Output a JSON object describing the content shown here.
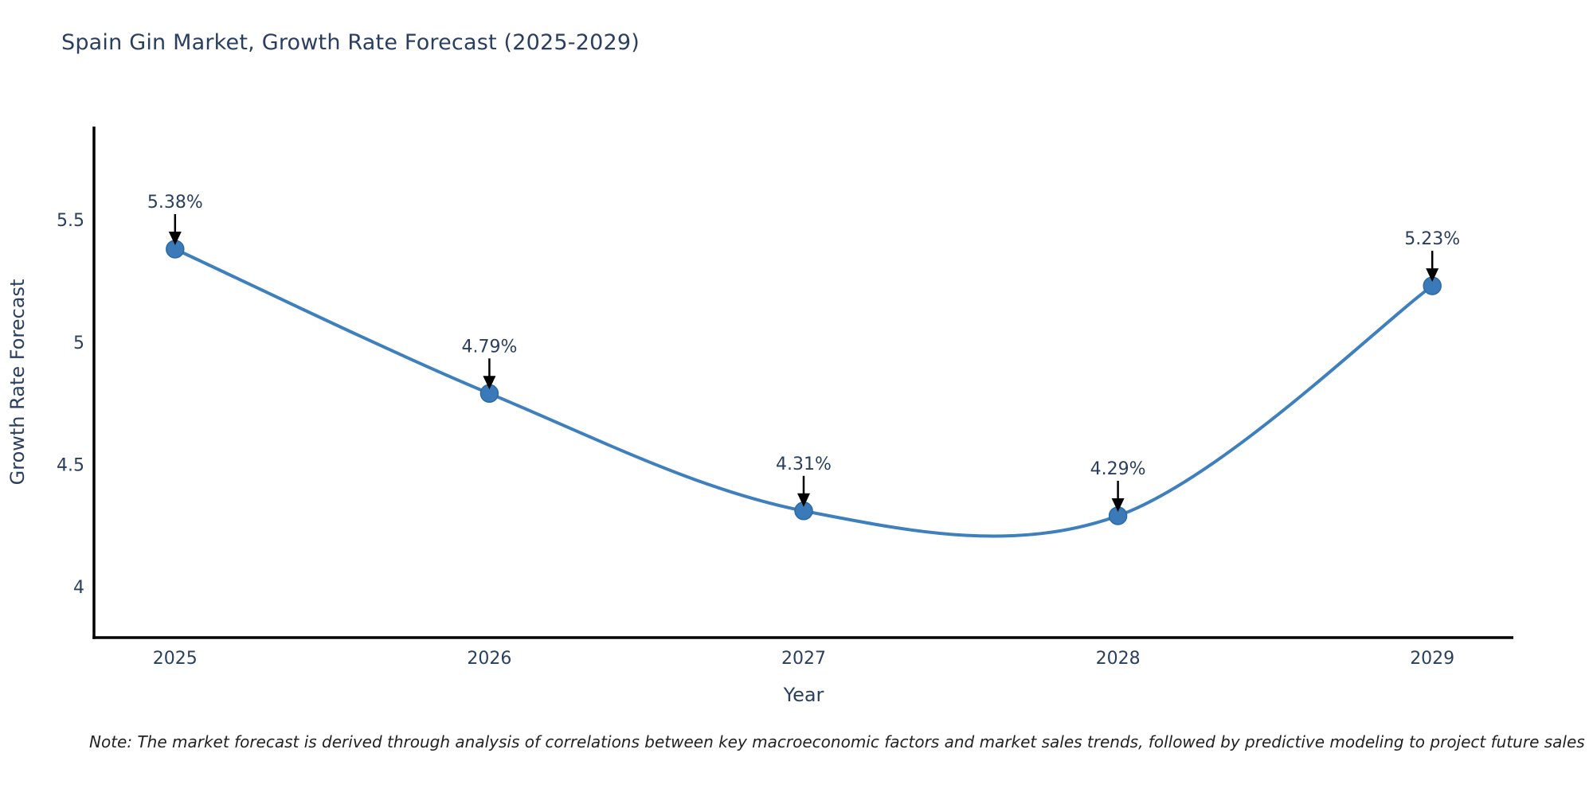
{
  "title": "Spain Gin Market, Growth Rate Forecast (2025-2029)",
  "note": "Note: The market forecast is derived through analysis of correlations between key macroeconomic factors and market sales trends, followed by predictive modeling to project future sales",
  "chart_data": {
    "type": "line",
    "title": "Spain Gin Market, Growth Rate Forecast (2025-2029)",
    "x": [
      2025,
      2026,
      2027,
      2028,
      2029
    ],
    "values": [
      5.38,
      4.79,
      4.31,
      4.29,
      5.23
    ],
    "point_labels": [
      "5.38%",
      "4.79%",
      "4.31%",
      "4.29%",
      "5.23%"
    ],
    "xlabel": "Year",
    "ylabel": "Growth Rate Forecast",
    "xlim": [
      2024.742,
      2029.258
    ],
    "ylim": [
      3.792,
      5.881
    ],
    "xticks": [
      2025,
      2026,
      2027,
      2028,
      2029
    ],
    "xtick_labels": [
      "2025",
      "2026",
      "2027",
      "2028",
      "2029"
    ],
    "yticks": [
      4,
      4.5,
      5,
      5.5
    ],
    "ytick_labels": [
      "4",
      "4.5",
      "5",
      "5.5"
    ],
    "grid": false,
    "legend": "none",
    "line_shape": "spline",
    "colors": {
      "line": "#3e7fbe",
      "marker_fill": "#3a7ab8",
      "marker_edge": "#2d6aa5",
      "axis": "#000000",
      "tick_text": "#2a3f5f",
      "annotation_text": "#2a3f5f",
      "arrow": "#000000",
      "note_text": "#222222"
    }
  }
}
